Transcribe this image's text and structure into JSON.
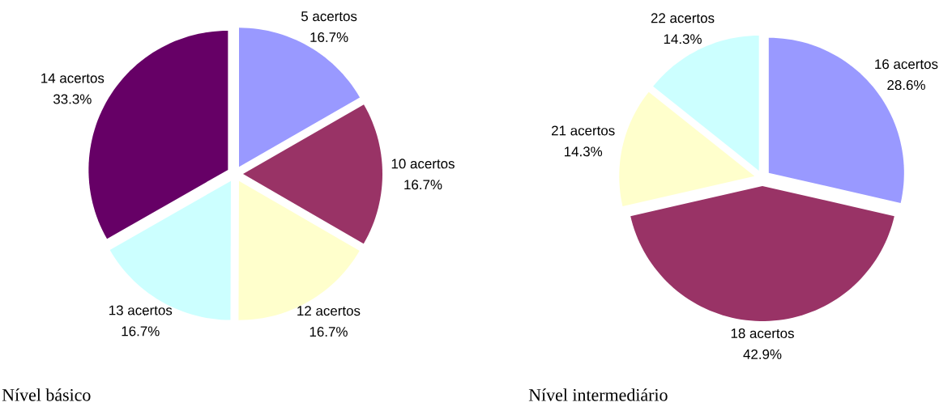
{
  "chart_data": [
    {
      "type": "pie",
      "title": "Nível básico",
      "categories": [
        "5 acertos",
        "10 acertos",
        "12 acertos",
        "13 acertos",
        "14 acertos"
      ],
      "values": [
        16.7,
        16.7,
        16.7,
        16.7,
        33.3
      ],
      "value_labels": [
        "16.7%",
        "16.7%",
        "16.7%",
        "16.7%",
        "33.3%"
      ],
      "colors": [
        "#9999ff",
        "#993366",
        "#ffffcc",
        "#ccffff",
        "#660066"
      ]
    },
    {
      "type": "pie",
      "title": "Nível intermediário",
      "categories": [
        "16 acertos",
        "18 acertos",
        "21 acertos",
        "22 acertos"
      ],
      "values": [
        28.6,
        42.9,
        14.3,
        14.3
      ],
      "value_labels": [
        "28.6%",
        "42.9%",
        "14.3%",
        "14.3%"
      ],
      "colors": [
        "#9999ff",
        "#993366",
        "#ffffcc",
        "#ccffff"
      ]
    }
  ]
}
